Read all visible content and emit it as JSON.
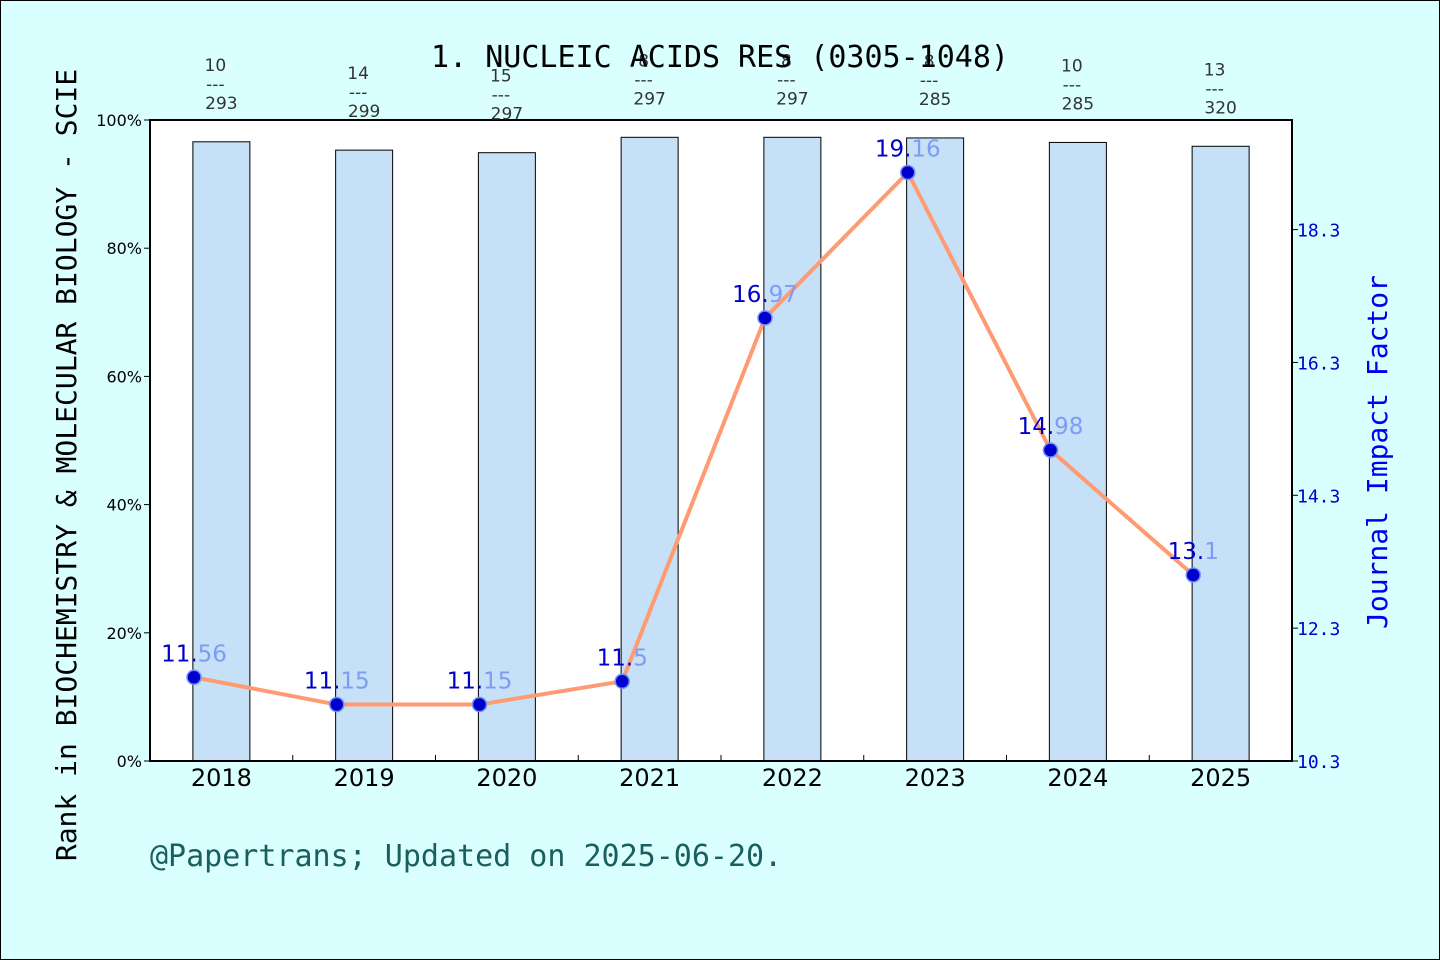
{
  "chart_data": {
    "type": "bar+line",
    "title": "1. NUCLEIC ACIDS RES (0305-1048)",
    "ylabel_left": "Rank in BIOCHEMISTRY & MOLECULAR BIOLOGY - SCIE",
    "ylabel_right": "Journal Impact Factor",
    "footer": "@Papertrans; Updated on 2025-06-20.",
    "categories": [
      "2018",
      "2019",
      "2020",
      "2021",
      "2022",
      "2023",
      "2024",
      "2025"
    ],
    "y_left_ticks": [
      "0%",
      "20%",
      "40%",
      "60%",
      "80%",
      "100%"
    ],
    "y_left_lim": [
      0,
      100
    ],
    "y_right_ticks": [
      "10.3",
      "12.3",
      "14.3",
      "16.3",
      "18.3"
    ],
    "y_right_lim": [
      10.3,
      19.95
    ],
    "rank_percentile": [
      96.6,
      95.3,
      94.9,
      97.3,
      97.3,
      97.2,
      96.5,
      95.9
    ],
    "rank_labels": [
      {
        "rank": "10",
        "sep": "---",
        "total": "293"
      },
      {
        "rank": "14",
        "sep": "---",
        "total": "299"
      },
      {
        "rank": "15",
        "sep": "---",
        "total": "297"
      },
      {
        "rank": "8",
        "sep": "---",
        "total": "297"
      },
      {
        "rank": "8",
        "sep": "---",
        "total": "297"
      },
      {
        "rank": "8",
        "sep": "---",
        "total": "285"
      },
      {
        "rank": "10",
        "sep": "---",
        "total": "285"
      },
      {
        "rank": "13",
        "sep": "---",
        "total": "320"
      }
    ],
    "impact_factor": [
      11.56,
      11.15,
      11.15,
      11.5,
      16.97,
      19.16,
      14.98,
      13.1
    ],
    "impact_factor_labels": [
      "11.56",
      "11.15",
      "11.15",
      "11.5",
      "16.97",
      "19.16",
      "14.98",
      "13.1"
    ],
    "colors": {
      "background": "#d9ffff",
      "bar_fill": "#c5e0f7",
      "line": "#ff9b73",
      "point": "#0000cc",
      "right_axis": "#0000cc"
    },
    "grid": false
  }
}
